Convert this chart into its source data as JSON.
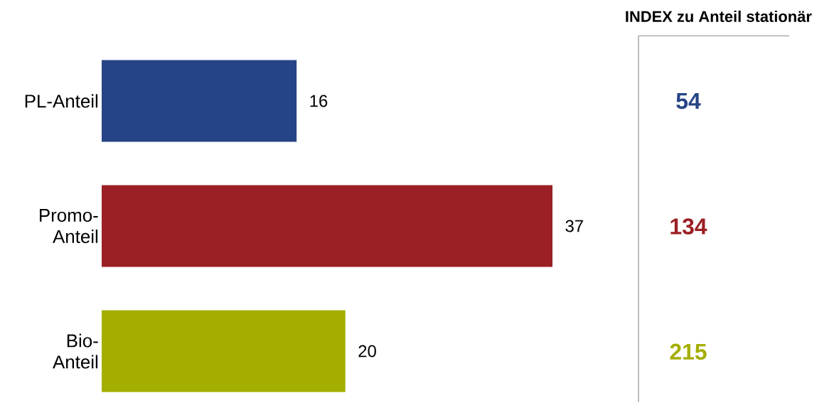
{
  "chart_data": [
    {
      "type": "bar",
      "orientation": "horizontal",
      "categories": [
        "PL-Anteil",
        "Promo-Anteil",
        "Bio-Anteil"
      ],
      "values": [
        16,
        37,
        20
      ],
      "colors": [
        "#264485",
        "#9b2025",
        "#a4ae00"
      ],
      "data_labels": true
    },
    {
      "type": "other",
      "title": "INDEX zu Anteil stationär",
      "values": [
        54,
        134,
        215
      ],
      "colors": [
        "#264485",
        "#9b2025",
        "#a4ae00"
      ],
      "data_labels": true
    }
  ]
}
